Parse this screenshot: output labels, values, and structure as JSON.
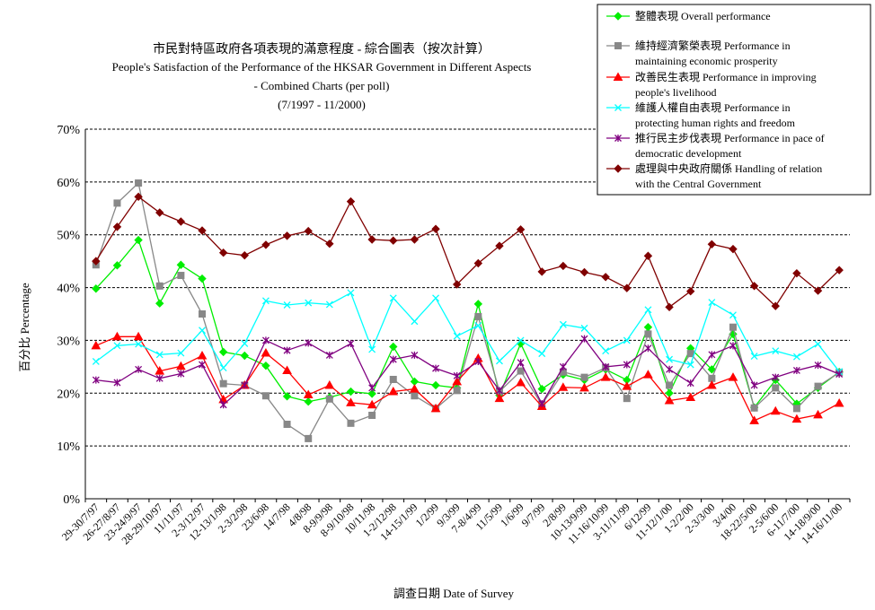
{
  "chart_data": {
    "type": "line",
    "title_lines": [
      "市民對特區政府各項表現的滿意程度 - 綜合圖表（按次計算）",
      "People's Satisfaction of the Performance of the HKSAR Government in Different Aspects",
      "- Combined Charts  (per poll)",
      "(7/1997 - 11/2000)"
    ],
    "xlabel": "調查日期 Date of Survey",
    "ylabel": "百分比 Percentage",
    "ylim": [
      0,
      70
    ],
    "yticks": [
      "0%",
      "10%",
      "20%",
      "30%",
      "40%",
      "50%",
      "60%",
      "70%"
    ],
    "grid": "horizontal dashed",
    "legend_position": "top-right",
    "categories": [
      "29-30/7/97",
      "26-27/8/97",
      "23-24/9/97",
      "28-29/10/97",
      "11/11/97",
      "2-3/12/97",
      "12-13/1/98",
      "2-3/2/98",
      "23/6/98",
      "14/7/98",
      "4/8/98",
      "8-9/9/98",
      "8-9/10/98",
      "10/11/98",
      "1-2/12/98",
      "14-15/1/99",
      "1/2/99",
      "9/3/99",
      "7-8/4/99",
      "11/5/99",
      "1/6/99",
      "9/7/99",
      "2/8/99",
      "10-13/9/99",
      "11-16/10/99",
      "3-11/11/99",
      "6/12/99",
      "11-12/1/00",
      "1-2/2/00",
      "2-3/3/00",
      "3/4/00",
      "18-22/5/00",
      "2-5/6/00",
      "6-11/7/00",
      "14-18/9/00",
      "14-16/11/00"
    ],
    "series": [
      {
        "name_lines": [
          "整體表現 Overall performance"
        ],
        "color": "#00ee00",
        "marker": "diamond",
        "values": [
          39.8,
          44.2,
          49.0,
          37.0,
          44.3,
          41.7,
          27.8,
          27.1,
          25.2,
          19.4,
          18.4,
          19.2,
          20.3,
          19.9,
          28.8,
          22.2,
          21.5,
          21.0,
          36.9,
          19.6,
          29.4,
          20.8,
          23.5,
          22.5,
          24.5,
          22.5,
          32.5,
          20.0,
          28.5,
          24.5,
          31.2,
          17.3,
          22.5,
          18.0,
          21.0,
          24.0
        ]
      },
      {
        "name_lines": [
          "維持經濟繁榮表現 Performance in",
          "maintaining economic prosperity"
        ],
        "color": "#888888",
        "marker": "square",
        "values": [
          44.3,
          56.0,
          59.8,
          40.3,
          42.3,
          35.0,
          21.8,
          21.5,
          19.5,
          14.1,
          11.4,
          18.9,
          14.3,
          15.8,
          22.6,
          19.5,
          17.1,
          20.5,
          34.5,
          20.3,
          24.2,
          17.8,
          24.0,
          23.0,
          24.8,
          19.0,
          31.2,
          21.5,
          27.5,
          22.8,
          32.5,
          17.2,
          21.0,
          17.1,
          21.3,
          23.9
        ]
      },
      {
        "name_lines": [
          "改善民生表現 Performance in improving",
          "people's livelihood"
        ],
        "color": "#ff0000",
        "marker": "triangle",
        "values": [
          29.0,
          30.7,
          30.7,
          24.2,
          25.1,
          27.1,
          18.8,
          21.5,
          27.6,
          24.3,
          19.7,
          21.5,
          18.2,
          17.8,
          20.3,
          20.8,
          17.1,
          22.2,
          26.6,
          19.0,
          22.0,
          17.5,
          21.1,
          21.0,
          23.0,
          21.3,
          23.5,
          18.6,
          19.2,
          21.5,
          23.0,
          14.8,
          16.6,
          15.1,
          15.9,
          18.1
        ]
      },
      {
        "name_lines": [
          "維護人權自由表現 Performance in",
          "protecting human rights and freedom"
        ],
        "color": "#00ffff",
        "marker": "x",
        "values": [
          26.0,
          29.0,
          29.3,
          27.3,
          27.6,
          31.9,
          24.8,
          29.4,
          37.5,
          36.7,
          37.1,
          36.8,
          39.0,
          28.3,
          38.0,
          33.6,
          38.0,
          30.8,
          32.8,
          26.1,
          30.0,
          27.5,
          33.0,
          32.3,
          28.0,
          30.0,
          35.8,
          26.4,
          25.4,
          37.2,
          34.8,
          27.0,
          28.0,
          26.9,
          29.3,
          24.1
        ]
      },
      {
        "name_lines": [
          "推行民主步伐表現 Performance in pace of",
          "democratic development"
        ],
        "color": "#800080",
        "marker": "star",
        "values": [
          22.5,
          22.0,
          24.5,
          22.8,
          23.7,
          25.4,
          17.8,
          21.5,
          30.0,
          28.1,
          29.5,
          27.2,
          29.4,
          21.0,
          26.4,
          27.2,
          24.7,
          23.3,
          26.0,
          20.5,
          25.8,
          18.0,
          25.0,
          30.3,
          25.0,
          25.4,
          28.5,
          24.5,
          21.9,
          27.3,
          29.0,
          21.5,
          23.0,
          24.3,
          25.3,
          23.6
        ]
      },
      {
        "name_lines": [
          "處理與中央政府關係 Handling of relation",
          "with the Central Government"
        ],
        "color": "#800000",
        "marker": "diamond",
        "values": [
          45.0,
          51.5,
          57.2,
          54.2,
          52.5,
          50.8,
          46.6,
          46.1,
          48.1,
          49.8,
          50.7,
          48.3,
          56.3,
          49.1,
          48.9,
          49.1,
          51.1,
          40.6,
          44.6,
          47.9,
          51.0,
          43.0,
          44.1,
          42.9,
          42.0,
          39.9,
          46.0,
          36.3,
          39.3,
          48.2,
          47.3,
          40.3,
          36.5,
          42.7,
          39.4,
          43.3
        ]
      }
    ]
  }
}
